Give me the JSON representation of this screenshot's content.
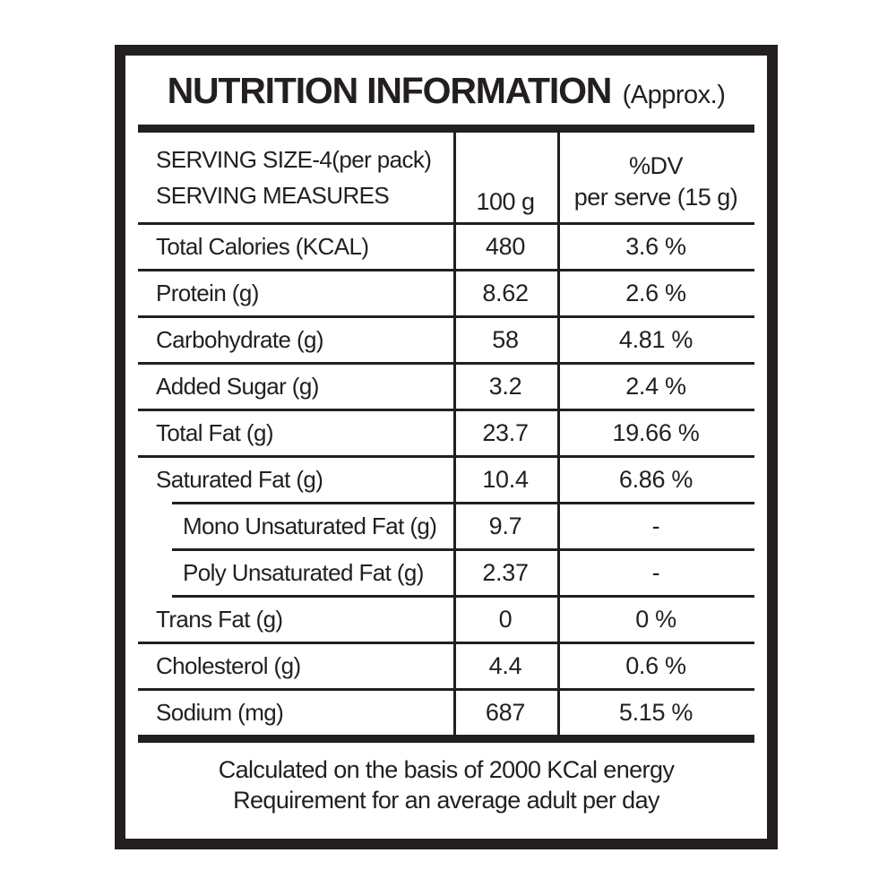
{
  "label": {
    "title": "NUTRITION INFORMATION",
    "title_suffix": "(Approx.)",
    "colors": {
      "ink": "#231f20",
      "background": "#ffffff"
    },
    "table": {
      "header": {
        "serving_size": "SERVING SIZE-4(per pack)",
        "serving_measures": "SERVING MEASURES",
        "amount_col": "100 g",
        "dv_col_line1": "%DV",
        "dv_col_line2": "per serve (15 g)"
      },
      "rows": [
        {
          "label": "Total Calories (KCAL)",
          "per_100g": "480",
          "dv": "3.6 %",
          "sub": false
        },
        {
          "label": "Protein (g)",
          "per_100g": "8.62",
          "dv": "2.6 %",
          "sub": false
        },
        {
          "label": "Carbohydrate (g)",
          "per_100g": "58",
          "dv": "4.81 %",
          "sub": false
        },
        {
          "label": "Added Sugar (g)",
          "per_100g": "3.2",
          "dv": "2.4 %",
          "sub": false
        },
        {
          "label": "Total Fat (g)",
          "per_100g": "23.7",
          "dv": "19.66 %",
          "sub": false
        },
        {
          "label": "Saturated Fat (g)",
          "per_100g": "10.4",
          "dv": "6.86 %",
          "sub": false
        },
        {
          "label": "Mono Unsaturated Fat (g)",
          "per_100g": "9.7",
          "dv": "-",
          "sub": true
        },
        {
          "label": "Poly Unsaturated Fat (g)",
          "per_100g": "2.37",
          "dv": "-",
          "sub": true
        },
        {
          "label": "Trans Fat (g)",
          "per_100g": "0",
          "dv": "0 %",
          "sub": false
        },
        {
          "label": "Cholesterol (g)",
          "per_100g": "4.4",
          "dv": "0.6 %",
          "sub": false
        },
        {
          "label": "Sodium (mg)",
          "per_100g": "687",
          "dv": "5.15 %",
          "sub": false
        }
      ]
    },
    "footer": {
      "line1": "Calculated on the basis of 2000 KCal energy",
      "line2": "Requirement for an average adult per day"
    }
  }
}
